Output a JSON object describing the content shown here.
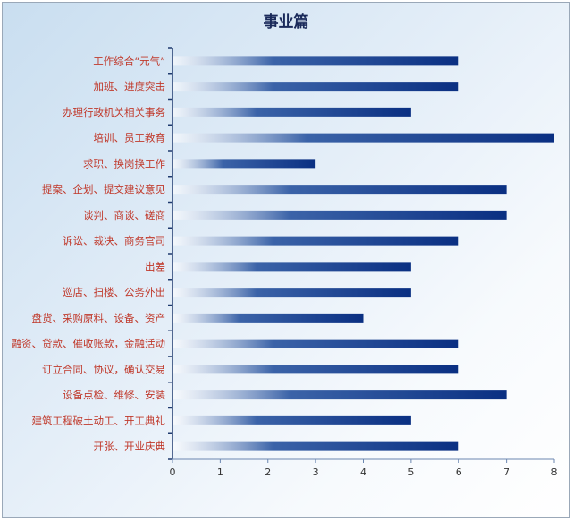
{
  "chart_data": {
    "type": "bar",
    "orientation": "horizontal",
    "title": "事业篇",
    "categories": [
      "工作综合“元气”",
      "加班、进度突击",
      "办理行政机关相关事务",
      "培训、员工教育",
      "求职、换岗换工作",
      "提案、企划、提交建议意见",
      "谈判、商谈、磋商",
      "诉讼、裁决、商务官司",
      "出差",
      "巡店、扫楼、公务外出",
      "盘货、采购原料、设备、资产",
      "融资、贷款、催收账款，金融活动",
      "订立合同、协议，确认交易",
      "设备点检、维修、安装",
      "建筑工程破土动工、开工典礼",
      "开张、开业庆典"
    ],
    "values": [
      6,
      6,
      5,
      8,
      3,
      7,
      7,
      6,
      5,
      5,
      4,
      6,
      6,
      7,
      5,
      6
    ],
    "xlim": [
      0,
      8
    ],
    "xticks": [
      "0",
      "1",
      "2",
      "3",
      "4",
      "5",
      "6",
      "7",
      "8"
    ],
    "grid": false,
    "legend": "none",
    "colors": {
      "bar_start": "#ffffff",
      "bar_end": "#0a2f82",
      "label": "#c0392b",
      "title": "#1a2a5a",
      "axis": "#1f3a6e"
    }
  }
}
